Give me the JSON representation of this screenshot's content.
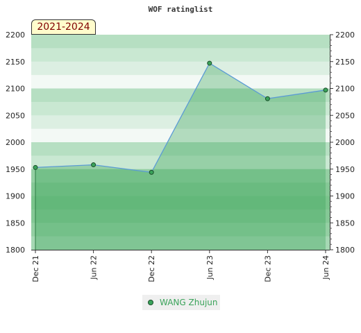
{
  "chart_data": {
    "type": "area",
    "title": "WOF ratinglist",
    "badge": "2021-2024",
    "categories": [
      "Dec 21",
      "Jun 22",
      "Dec 22",
      "Jun 23",
      "Dec 23",
      "Jun 24"
    ],
    "y_ticks": [
      "1800",
      "1850",
      "1900",
      "1950",
      "2000",
      "2050",
      "2100",
      "2150",
      "2200"
    ],
    "ylim": [
      1800,
      2200
    ],
    "series": [
      {
        "name": "WANG Zhujun",
        "values": [
          1953,
          1958,
          1944,
          2147,
          2081,
          2097
        ]
      }
    ],
    "legend_position": "bottom",
    "colors": {
      "line": "#5b9bd5",
      "area": "#3aa35a",
      "marker": "#3aa35a",
      "legend_text": "#3aa35a"
    }
  }
}
